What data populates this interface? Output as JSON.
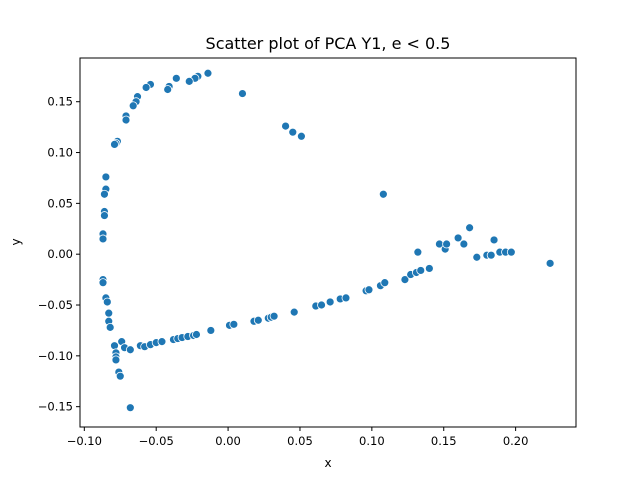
{
  "chart_data": {
    "type": "scatter",
    "title": "Scatter plot of PCA Y1, e < 0.5",
    "xlabel": "x",
    "ylabel": "y",
    "xlim": [
      -0.103,
      0.242
    ],
    "ylim": [
      -0.17,
      0.193
    ],
    "x_ticks": [
      -0.1,
      -0.05,
      0.0,
      0.05,
      0.1,
      0.15,
      0.2
    ],
    "x_tick_labels": [
      "−0.10",
      "−0.05",
      "0.00",
      "0.05",
      "0.10",
      "0.15",
      "0.20"
    ],
    "y_ticks": [
      -0.15,
      -0.1,
      -0.05,
      0.0,
      0.05,
      0.1,
      0.15
    ],
    "y_tick_labels": [
      "−0.15",
      "−0.10",
      "−0.05",
      "0.00",
      "0.05",
      "0.10",
      "0.15"
    ],
    "grid": false,
    "marker_color": "#1f77b4",
    "points": [
      [
        -0.014,
        0.178
      ],
      [
        -0.021,
        0.175
      ],
      [
        -0.023,
        0.173
      ],
      [
        -0.027,
        0.17
      ],
      [
        -0.036,
        0.173
      ],
      [
        -0.041,
        0.165
      ],
      [
        -0.042,
        0.162
      ],
      [
        -0.054,
        0.167
      ],
      [
        -0.057,
        0.164
      ],
      [
        -0.063,
        0.155
      ],
      [
        -0.064,
        0.15
      ],
      [
        -0.066,
        0.146
      ],
      [
        -0.071,
        0.136
      ],
      [
        -0.071,
        0.132
      ],
      [
        -0.077,
        0.111
      ],
      [
        -0.078,
        0.109
      ],
      [
        -0.079,
        0.108
      ],
      [
        0.01,
        0.158
      ],
      [
        0.04,
        0.126
      ],
      [
        0.045,
        0.12
      ],
      [
        0.051,
        0.116
      ],
      [
        0.108,
        0.059
      ],
      [
        -0.085,
        0.076
      ],
      [
        -0.085,
        0.064
      ],
      [
        -0.086,
        0.059
      ],
      [
        -0.086,
        0.042
      ],
      [
        -0.086,
        0.038
      ],
      [
        -0.087,
        0.02
      ],
      [
        -0.087,
        0.015
      ],
      [
        -0.087,
        -0.025
      ],
      [
        -0.087,
        -0.028
      ],
      [
        -0.085,
        -0.043
      ],
      [
        -0.084,
        -0.047
      ],
      [
        -0.083,
        -0.058
      ],
      [
        -0.083,
        -0.066
      ],
      [
        -0.082,
        -0.072
      ],
      [
        -0.079,
        -0.09
      ],
      [
        -0.078,
        -0.097
      ],
      [
        -0.078,
        -0.101
      ],
      [
        -0.078,
        -0.104
      ],
      [
        -0.076,
        -0.116
      ],
      [
        -0.075,
        -0.12
      ],
      [
        -0.074,
        -0.086
      ],
      [
        -0.072,
        -0.092
      ],
      [
        -0.068,
        -0.151
      ],
      [
        -0.068,
        -0.094
      ],
      [
        -0.061,
        -0.09
      ],
      [
        -0.058,
        -0.091
      ],
      [
        -0.054,
        -0.089
      ],
      [
        -0.05,
        -0.087
      ],
      [
        -0.046,
        -0.086
      ],
      [
        -0.038,
        -0.084
      ],
      [
        -0.035,
        -0.083
      ],
      [
        -0.032,
        -0.082
      ],
      [
        -0.028,
        -0.081
      ],
      [
        -0.024,
        -0.08
      ],
      [
        -0.022,
        -0.079
      ],
      [
        -0.012,
        -0.075
      ],
      [
        0.001,
        -0.07
      ],
      [
        0.004,
        -0.069
      ],
      [
        0.018,
        -0.066
      ],
      [
        0.021,
        -0.065
      ],
      [
        0.028,
        -0.063
      ],
      [
        0.03,
        -0.062
      ],
      [
        0.032,
        -0.061
      ],
      [
        0.046,
        -0.057
      ],
      [
        0.061,
        -0.051
      ],
      [
        0.065,
        -0.05
      ],
      [
        0.071,
        -0.047
      ],
      [
        0.078,
        -0.044
      ],
      [
        0.082,
        -0.043
      ],
      [
        0.096,
        -0.036
      ],
      [
        0.098,
        -0.035
      ],
      [
        0.106,
        -0.031
      ],
      [
        0.109,
        -0.028
      ],
      [
        0.123,
        -0.025
      ],
      [
        0.127,
        -0.02
      ],
      [
        0.131,
        -0.018
      ],
      [
        0.134,
        -0.016
      ],
      [
        0.132,
        0.002
      ],
      [
        0.14,
        -0.014
      ],
      [
        0.147,
        0.01
      ],
      [
        0.151,
        0.005
      ],
      [
        0.152,
        0.01
      ],
      [
        0.16,
        0.016
      ],
      [
        0.164,
        0.01
      ],
      [
        0.168,
        0.026
      ],
      [
        0.173,
        -0.003
      ],
      [
        0.18,
        -0.001
      ],
      [
        0.183,
        -0.001
      ],
      [
        0.185,
        0.014
      ],
      [
        0.189,
        0.002
      ],
      [
        0.193,
        0.002
      ],
      [
        0.197,
        0.002
      ],
      [
        0.224,
        -0.009
      ]
    ]
  }
}
